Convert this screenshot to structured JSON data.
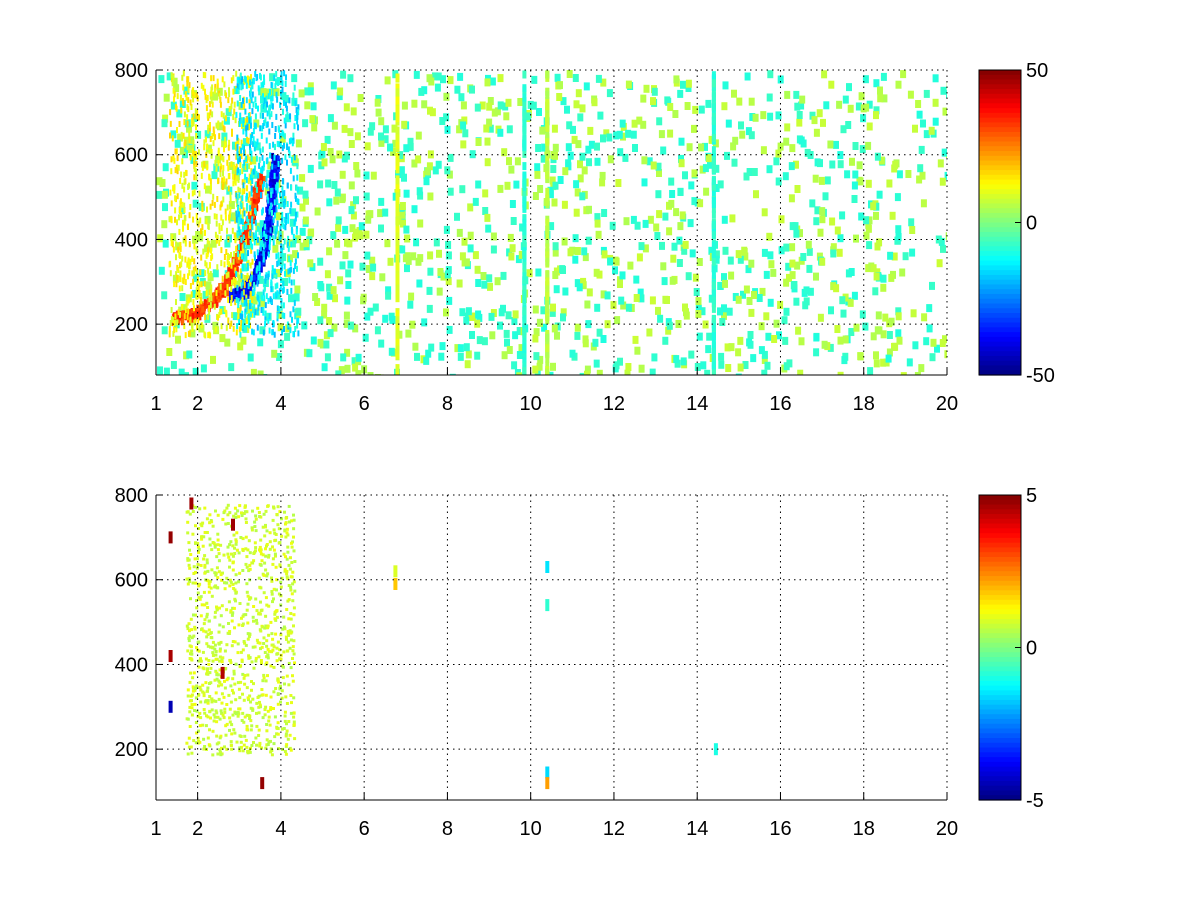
{
  "chart_data": [
    {
      "type": "heatmap",
      "title": "",
      "xlabel": "",
      "ylabel": "",
      "xlim": [
        1,
        20
      ],
      "ylim": [
        80,
        800
      ],
      "xticks": [
        1,
        2,
        4,
        6,
        8,
        10,
        12,
        14,
        16,
        18,
        20
      ],
      "yticks": [
        200,
        400,
        600,
        800
      ],
      "grid": true,
      "colormap": "jet",
      "clim": [
        -50,
        50
      ],
      "colorbar": {
        "ticks": [
          50,
          0,
          -50
        ],
        "placement": "right"
      },
      "features": [
        {
          "kind": "ridge",
          "value": 35,
          "points": [
            [
              1.4,
              220
            ],
            [
              1.9,
              228
            ],
            [
              2.3,
              258
            ],
            [
              2.6,
              290
            ],
            [
              2.8,
              330
            ],
            [
              3.0,
              380
            ],
            [
              3.2,
              440
            ],
            [
              3.35,
              500
            ],
            [
              3.5,
              560
            ]
          ]
        },
        {
          "kind": "ridge",
          "value": -42,
          "points": [
            [
              2.8,
              270
            ],
            [
              3.1,
              285
            ],
            [
              3.35,
              320
            ],
            [
              3.55,
              370
            ],
            [
              3.65,
              430
            ],
            [
              3.75,
              500
            ],
            [
              3.8,
              560
            ],
            [
              3.85,
              600
            ]
          ]
        },
        {
          "kind": "region",
          "value": 12,
          "x": [
            1.3,
            3.3
          ],
          "y": [
            180,
            800
          ],
          "density": 0.45
        },
        {
          "kind": "region",
          "value": -14,
          "x": [
            2.9,
            4.4
          ],
          "y": [
            180,
            800
          ],
          "density": 0.4
        },
        {
          "kind": "column",
          "value": 6,
          "x": 10.4,
          "y": [
            80,
            800
          ]
        },
        {
          "kind": "column",
          "value": -8,
          "x": 9.85,
          "y": [
            80,
            800
          ]
        },
        {
          "kind": "column",
          "value": -8,
          "x": 14.4,
          "y": [
            80,
            800
          ]
        },
        {
          "kind": "column",
          "value": 10,
          "x": 6.8,
          "y": [
            80,
            800
          ]
        }
      ]
    },
    {
      "type": "heatmap",
      "title": "",
      "xlabel": "",
      "ylabel": "",
      "xlim": [
        1,
        20
      ],
      "ylim": [
        80,
        800
      ],
      "xticks": [
        1,
        2,
        4,
        6,
        8,
        10,
        12,
        14,
        16,
        18,
        20
      ],
      "yticks": [
        200,
        400,
        600,
        800
      ],
      "grid": true,
      "colormap": "jet",
      "clim": [
        -5,
        5
      ],
      "colorbar": {
        "ticks": [
          5,
          0,
          -5
        ],
        "placement": "right"
      },
      "features": [
        {
          "kind": "region",
          "value": 0.8,
          "x": [
            1.7,
            4.3
          ],
          "y": [
            190,
            780
          ],
          "density": 0.55
        },
        {
          "kind": "spot",
          "value": 1.8,
          "x": 6.75,
          "y": 590
        },
        {
          "kind": "spot",
          "value": 0.9,
          "x": 6.75,
          "y": 620
        },
        {
          "kind": "spot",
          "value": -1.5,
          "x": 10.4,
          "y": 630
        },
        {
          "kind": "spot",
          "value": -0.8,
          "x": 10.4,
          "y": 540
        },
        {
          "kind": "spot",
          "value": -1.6,
          "x": 10.4,
          "y": 145
        },
        {
          "kind": "spot",
          "value": 2.2,
          "x": 10.4,
          "y": 120
        },
        {
          "kind": "spot",
          "value": -1.0,
          "x": 14.45,
          "y": 200
        },
        {
          "kind": "spot",
          "value": 4.8,
          "x": 1.35,
          "y": 700
        },
        {
          "kind": "spot",
          "value": 4.6,
          "x": 1.35,
          "y": 420
        },
        {
          "kind": "spot",
          "value": -4.5,
          "x": 1.35,
          "y": 300
        },
        {
          "kind": "spot",
          "value": 4.7,
          "x": 2.85,
          "y": 730
        },
        {
          "kind": "spot",
          "value": 4.5,
          "x": 2.6,
          "y": 380
        },
        {
          "kind": "spot",
          "value": 4.8,
          "x": 3.55,
          "y": 120
        },
        {
          "kind": "spot",
          "value": 4.7,
          "x": 1.85,
          "y": 780
        }
      ]
    }
  ]
}
